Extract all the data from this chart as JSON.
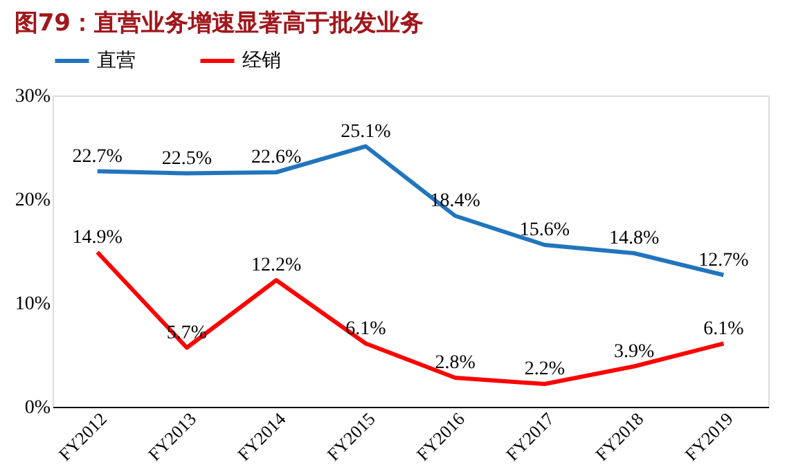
{
  "chart_data": {
    "type": "line",
    "title": "图79：直营业务增速显著高于批发业务",
    "categories": [
      "FY2012",
      "FY2013",
      "FY2014",
      "FY2015",
      "FY2016",
      "FY2017",
      "FY2018",
      "FY2019"
    ],
    "series": [
      {
        "name": "直营",
        "color": "#2175bd",
        "values": [
          22.7,
          22.5,
          22.6,
          25.1,
          18.4,
          15.6,
          14.8,
          12.7
        ],
        "value_labels": [
          "22.7%",
          "22.5%",
          "22.6%",
          "25.1%",
          "18.4%",
          "15.6%",
          "14.8%",
          "12.7%"
        ]
      },
      {
        "name": "经销",
        "color": "#ff0000",
        "values": [
          14.9,
          5.7,
          12.2,
          6.1,
          2.8,
          2.2,
          3.9,
          6.1
        ],
        "value_labels": [
          "14.9%",
          "5.7%",
          "12.2%",
          "6.1%",
          "2.8%",
          "2.2%",
          "3.9%",
          "6.1%"
        ]
      }
    ],
    "ylim": [
      0,
      30
    ],
    "yticks": [
      {
        "value": 0,
        "label": "0%"
      },
      {
        "value": 10,
        "label": "10%"
      },
      {
        "value": 20,
        "label": "20%"
      },
      {
        "value": 30,
        "label": "30%"
      }
    ],
    "legend": "top",
    "grid": false,
    "marker": "none",
    "line_style": "solid"
  }
}
